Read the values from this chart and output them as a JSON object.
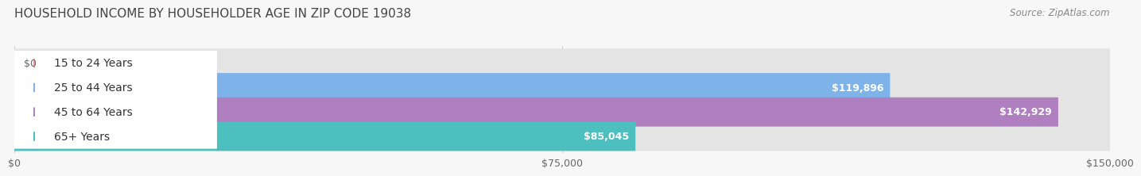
{
  "title": "HOUSEHOLD INCOME BY HOUSEHOLDER AGE IN ZIP CODE 19038",
  "source": "Source: ZipAtlas.com",
  "categories": [
    "15 to 24 Years",
    "25 to 44 Years",
    "45 to 64 Years",
    "65+ Years"
  ],
  "values": [
    0,
    119896,
    142929,
    85045
  ],
  "bar_colors": [
    "#f4a0a8",
    "#7db3e8",
    "#b07fc0",
    "#4dbfbf"
  ],
  "value_labels": [
    "$0",
    "$119,896",
    "$142,929",
    "$85,045"
  ],
  "xlim": [
    0,
    150000
  ],
  "xticks": [
    0,
    75000,
    150000
  ],
  "xtick_labels": [
    "$0",
    "$75,000",
    "$150,000"
  ],
  "background_color": "#f7f7f7",
  "bar_bg_color": "#e4e4e4",
  "title_fontsize": 11,
  "source_fontsize": 8.5,
  "label_fontsize": 10,
  "value_fontsize": 9,
  "bar_height": 0.6,
  "figsize": [
    14.06,
    2.33
  ]
}
